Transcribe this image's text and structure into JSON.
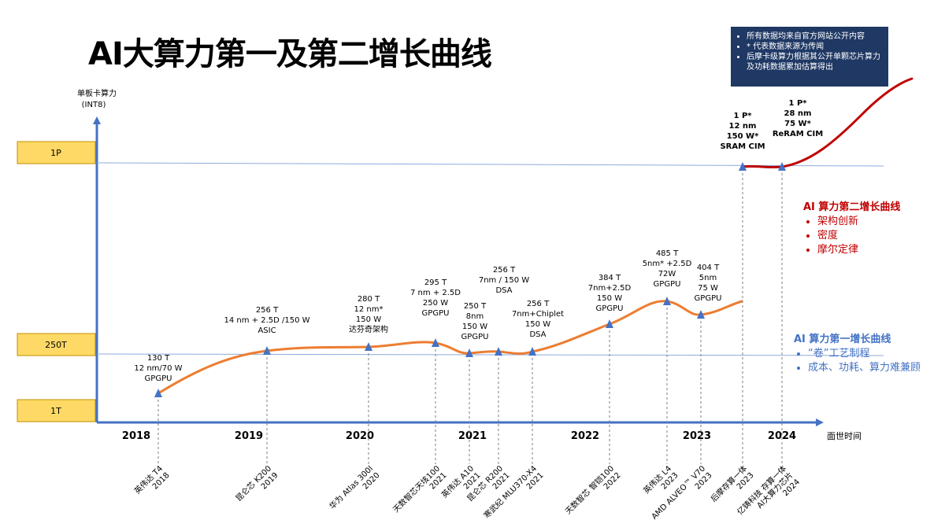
{
  "title": "AI大算力第一及第二增长曲线",
  "note": {
    "items": [
      "所有数据均来自官方网站公开内容",
      "* 代表数据来源为传闻",
      "后摩卡级算力根据其公开单颗芯片算力及功耗数据累加估算得出"
    ]
  },
  "legend_second": {
    "heading": "AI 算力第二增长曲线",
    "items": [
      "架构创新",
      "密度",
      "摩尔定律"
    ]
  },
  "legend_first": {
    "heading": "AI 算力第一增长曲线",
    "items": [
      "“卷”工艺制程",
      "成本、功耗、算力难兼顾"
    ]
  },
  "colors": {
    "first_curve": "#ed7d31",
    "second_curve": "#c00000",
    "axis": "#4472c4",
    "note_bg": "#1f3864",
    "level_box": "#ffd966"
  },
  "chart_data": {
    "type": "line",
    "ylabel": [
      "单板卡算力",
      "(INT8)"
    ],
    "xlabel": "面世时间",
    "years": [
      "2018",
      "2019",
      "2020",
      "2021",
      "2022",
      "2023",
      "2024"
    ],
    "y_levels": [
      "1P",
      "250T",
      "1T"
    ],
    "points": [
      {
        "label": [
          "130 T",
          "12 nm/70 W",
          "GPGPU"
        ],
        "product": [
          "英伟达 T4",
          "2018"
        ],
        "series": "first"
      },
      {
        "label": [
          "256 T",
          "14 nm + 2.5D /150 W",
          "ASIC"
        ],
        "product": [
          "昆仑芯 K200",
          "2019"
        ],
        "series": "first"
      },
      {
        "label": [
          "280 T",
          "12 nm*",
          "150 W",
          "达芬奇架构"
        ],
        "product": [
          "华为 Atlas 300I",
          "2020"
        ],
        "series": "first"
      },
      {
        "label": [
          "295 T",
          "7 nm + 2.5D",
          "250 W",
          "GPGPU"
        ],
        "product": [
          "天数智芯天垓100",
          "2021"
        ],
        "series": "first"
      },
      {
        "label": [
          "250 T",
          "8nm",
          "150 W",
          "GPGPU"
        ],
        "product": [
          "英伟达 A10",
          "2021"
        ],
        "series": "first"
      },
      {
        "label": [
          "256 T",
          "7nm / 150 W",
          "DSA"
        ],
        "product": [
          "昆仑芯 R200",
          "2021"
        ],
        "series": "first"
      },
      {
        "label": [
          "256 T",
          "7nm+Chiplet",
          "150 W",
          "DSA"
        ],
        "product": [
          "寒武纪 MLU370-X4",
          "2021"
        ],
        "series": "first"
      },
      {
        "label": [
          "384 T",
          "7nm+2.5D",
          "150 W",
          "GPGPU"
        ],
        "product": [
          "天数智芯 智铠100",
          "2022"
        ],
        "series": "first"
      },
      {
        "label": [
          "485 T",
          "5nm* +2.5D",
          "72W",
          "GPGPU"
        ],
        "product": [
          "英伟达 L4",
          "2023"
        ],
        "series": "first"
      },
      {
        "label": [
          "404 T",
          "5nm",
          "75 W",
          "GPGPU"
        ],
        "product": [
          "AMD ALVEO™ V70",
          "2023"
        ],
        "series": "first"
      },
      {
        "label": [
          "1 P*",
          "12 nm",
          "150 W*",
          "SRAM CIM"
        ],
        "product": [
          "后摩存算一体",
          "2023"
        ],
        "series": "second"
      },
      {
        "label": [
          "1 P*",
          "28 nm",
          "75 W*",
          "ReRAM CIM"
        ],
        "product": [
          "亿铸科技 存算一体",
          "AI大算力芯片",
          "2024"
        ],
        "series": "second"
      }
    ]
  }
}
